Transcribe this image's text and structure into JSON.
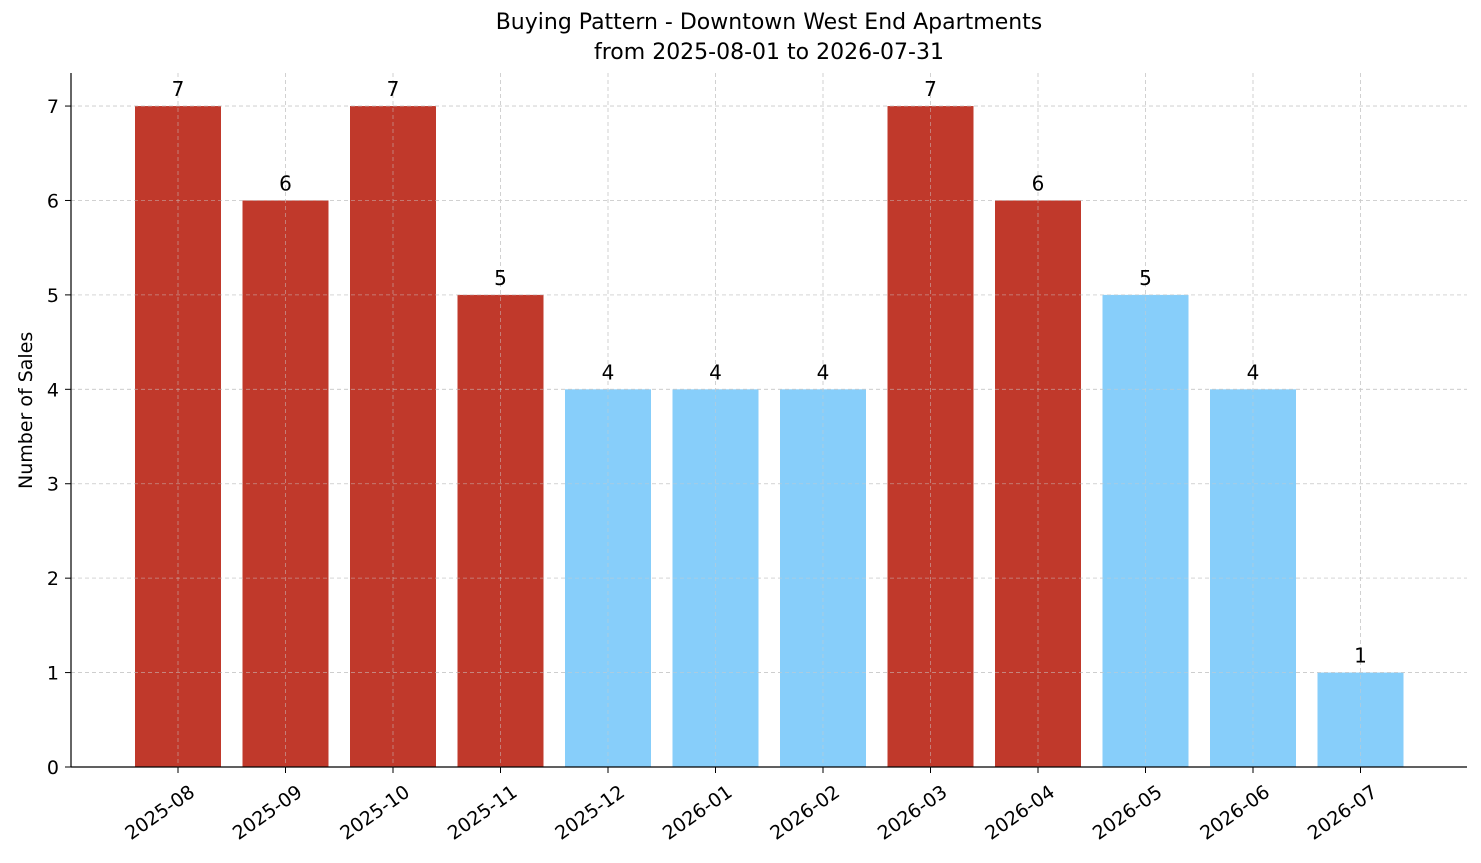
{
  "chart_data": {
    "type": "bar",
    "title": "Buying Pattern - Downtown West End Apartments",
    "subtitle": "from 2025-08-01 to 2026-07-31",
    "xlabel": "",
    "ylabel": "Number of Sales",
    "categories": [
      "2025-08",
      "2025-09",
      "2025-10",
      "2025-11",
      "2025-12",
      "2026-01",
      "2026-02",
      "2026-03",
      "2026-04",
      "2026-05",
      "2026-06",
      "2026-07"
    ],
    "values": [
      7,
      6,
      7,
      5,
      4,
      4,
      4,
      7,
      6,
      5,
      4,
      1
    ],
    "data_labels": [
      "7",
      "6",
      "7",
      "5",
      "4",
      "4",
      "4",
      "7",
      "6",
      "5",
      "4",
      "1"
    ],
    "bar_colors": [
      "#c0392b",
      "#c0392b",
      "#c0392b",
      "#c0392b",
      "#87cefa",
      "#87cefa",
      "#87cefa",
      "#c0392b",
      "#c0392b",
      "#87cefa",
      "#87cefa",
      "#87cefa"
    ],
    "yticks": [
      0,
      1,
      2,
      3,
      4,
      5,
      6,
      7
    ],
    "ylim": [
      0,
      7.35
    ],
    "grid": true,
    "legend": "none"
  }
}
